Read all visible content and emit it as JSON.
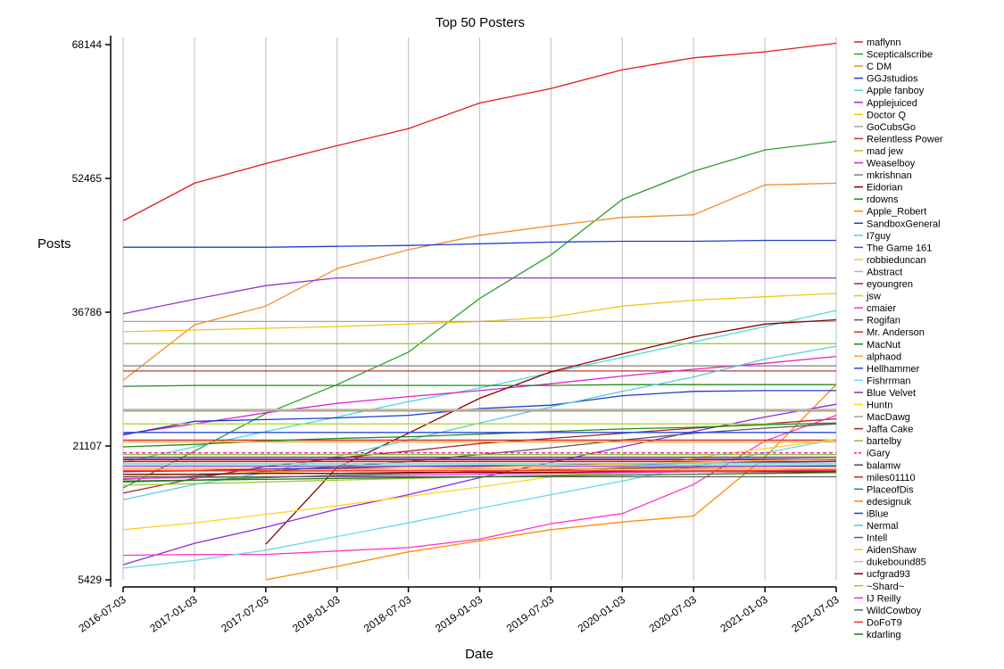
{
  "chart_data": {
    "type": "line",
    "title": "Top 50 Posters",
    "xlabel": "Date",
    "ylabel": "Posts",
    "x": [
      "2016-07-03",
      "2017-01-03",
      "2017-07-03",
      "2018-01-03",
      "2018-07-03",
      "2019-01-03",
      "2019-07-03",
      "2020-01-03",
      "2020-07-03",
      "2021-01-03",
      "2021-07-03"
    ],
    "x_tick_labels": [
      "2016-07-03",
      "2017-01-03",
      "2017-07-03",
      "2018-01-03",
      "2018-07-03",
      "2019-01-03",
      "2019-07-03",
      "2020-01-03",
      "2020-07-03",
      "2021-01-03",
      "2021-07-03"
    ],
    "y_ticks": [
      5429,
      21107,
      36786,
      52465,
      68144
    ],
    "ylim": [
      5429,
      68144
    ],
    "grid": {
      "vertical": true,
      "horizontal": false
    },
    "legend_position": "right",
    "series": [
      {
        "name": "maflynn",
        "color": "#e41a1c",
        "values": [
          47500,
          51900,
          54200,
          56300,
          58300,
          61300,
          63000,
          65200,
          66600,
          67300,
          68300
        ]
      },
      {
        "name": "Scepticalscribe",
        "color": "#2ca02c",
        "values": [
          16200,
          20500,
          24900,
          28300,
          32100,
          38400,
          43500,
          50000,
          53300,
          55800,
          56800
        ]
      },
      {
        "name": "C DM",
        "color": "#f28e2b",
        "values": [
          28800,
          35300,
          37500,
          41900,
          44100,
          45800,
          46900,
          47900,
          48200,
          51700,
          51900
        ]
      },
      {
        "name": "GGJstudios",
        "color": "#1f3fd6",
        "values": [
          44400,
          44400,
          44400,
          44500,
          44600,
          44800,
          45000,
          45100,
          45100,
          45200,
          45200
        ]
      },
      {
        "name": "Apple fanboy",
        "color": "#4dd8d8",
        "values": [
          19200,
          21000,
          22800,
          24500,
          26300,
          27900,
          29700,
          31500,
          33300,
          35100,
          37000
        ]
      },
      {
        "name": "Applejuiced",
        "color": "#9b30d9",
        "values": [
          36600,
          38300,
          39900,
          40800,
          40800,
          40800,
          40800,
          40800,
          40800,
          40800,
          40800
        ]
      },
      {
        "name": "Doctor Q",
        "color": "#f5c518",
        "values": [
          34500,
          34700,
          34900,
          35100,
          35400,
          35700,
          36200,
          37500,
          38200,
          38600,
          39000
        ]
      },
      {
        "name": "GoCubsGo",
        "color": "#a6a6a6",
        "values": [
          35700,
          35700,
          35700,
          35700,
          35700,
          35700,
          35700,
          35700,
          35700,
          35700,
          35700
        ]
      },
      {
        "name": "Relentless Power",
        "color": "#c0392b",
        "values": [
          29900,
          29900,
          29900,
          29900,
          29900,
          29900,
          29900,
          29900,
          29900,
          29900,
          29900
        ]
      },
      {
        "name": "mad jew",
        "color": "#9acd32",
        "values": [
          33100,
          33100,
          33100,
          33100,
          33100,
          33100,
          33100,
          33100,
          33100,
          33100,
          33100
        ]
      },
      {
        "name": "Weaselboy",
        "color": "#e020d0",
        "values": [
          22500,
          23700,
          25000,
          26100,
          26900,
          27600,
          28400,
          29300,
          30100,
          30800,
          31600
        ]
      },
      {
        "name": "mkrishnan",
        "color": "#7f7f7f",
        "values": [
          30500,
          30500,
          30500,
          30500,
          30500,
          30500,
          30500,
          30500,
          30500,
          30500,
          30500
        ]
      },
      {
        "name": "Eidorian",
        "color": "#8b0000",
        "values": [
          null,
          null,
          9600,
          18600,
          22600,
          26700,
          29800,
          31900,
          33900,
          35400,
          35900
        ]
      },
      {
        "name": "rdowns",
        "color": "#1e8c1e",
        "values": [
          28100,
          28200,
          28200,
          28200,
          28200,
          28200,
          28200,
          28300,
          28300,
          28300,
          28300
        ]
      },
      {
        "name": "Apple_Robert",
        "color": "#ff8c00",
        "values": [
          null,
          null,
          5429,
          7000,
          8700,
          10000,
          11300,
          12200,
          12900,
          19800,
          28300
        ]
      },
      {
        "name": "SandboxGeneral",
        "color": "#1a40c8",
        "values": [
          22400,
          24000,
          24200,
          24400,
          24700,
          25500,
          25900,
          27000,
          27500,
          27600,
          27600
        ]
      },
      {
        "name": "I7guy",
        "color": "#5cc8e0",
        "values": [
          14800,
          16600,
          18000,
          19900,
          21800,
          23800,
          25700,
          27500,
          29200,
          31300,
          32800
        ]
      },
      {
        "name": "The Game 161",
        "color": "#8a2be2",
        "values": [
          7200,
          9700,
          11600,
          13700,
          15400,
          17400,
          19200,
          21000,
          22800,
          24500,
          26000
        ]
      },
      {
        "name": "robbieduncan",
        "color": "#f0c040",
        "values": [
          25300,
          25300,
          25300,
          25300,
          25300,
          25300,
          25300,
          25300,
          25300,
          25300,
          25300
        ]
      },
      {
        "name": "Abstract",
        "color": "#b5b5b5",
        "values": [
          25400,
          25400,
          25400,
          25400,
          25400,
          25400,
          25400,
          25400,
          25400,
          25400,
          25400
        ]
      },
      {
        "name": "eyoungren",
        "color": "#a52a2a",
        "values": [
          15600,
          17300,
          18700,
          19700,
          20500,
          21400,
          22000,
          22600,
          23200,
          23700,
          24300
        ]
      },
      {
        "name": "jsw",
        "color": "#b8d430",
        "values": [
          23700,
          23700,
          23700,
          23700,
          23700,
          23700,
          23700,
          23700,
          23700,
          23700,
          23700
        ]
      },
      {
        "name": "cmaier",
        "color": "#ff33cc",
        "values": [
          8300,
          8400,
          8400,
          8800,
          9200,
          10200,
          12000,
          13200,
          16600,
          21700,
          24700
        ]
      },
      {
        "name": "Rogifan",
        "color": "#5a5a5a",
        "values": [
          17200,
          17600,
          18100,
          18700,
          19300,
          20100,
          20900,
          21800,
          22600,
          23200,
          23700
        ]
      },
      {
        "name": "Mr. Anderson",
        "color": "#d62728",
        "values": [
          21800,
          21800,
          21800,
          21800,
          21800,
          21800,
          21800,
          21800,
          21800,
          21800,
          21800
        ]
      },
      {
        "name": "MacNut",
        "color": "#228b22",
        "values": [
          21000,
          21300,
          21700,
          22000,
          22200,
          22500,
          22800,
          23100,
          23300,
          23600,
          23800
        ]
      },
      {
        "name": "alphaod",
        "color": "#ff9f1c",
        "values": [
          21600,
          21600,
          21600,
          21600,
          21600,
          21600,
          21600,
          21600,
          21600,
          21600,
          21600
        ]
      },
      {
        "name": "Hellhammer",
        "color": "#2b4ad6",
        "values": [
          22700,
          22700,
          22700,
          22700,
          22700,
          22700,
          22700,
          22700,
          22700,
          22700,
          22700
        ]
      },
      {
        "name": "Fishrrman",
        "color": "#66d9e8",
        "values": [
          6800,
          7700,
          8900,
          10500,
          12100,
          13800,
          15400,
          17000,
          18700,
          20300,
          21900
        ]
      },
      {
        "name": "Blue Velvet",
        "color": "#7b2fbe",
        "values": [
          19600,
          19600,
          19600,
          19600,
          19600,
          19600,
          19600,
          19600,
          19600,
          19600,
          19600
        ]
      },
      {
        "name": "Huntn",
        "color": "#ffd21f",
        "values": [
          11300,
          12100,
          13100,
          14100,
          15200,
          16300,
          17500,
          18600,
          19700,
          20800,
          21900
        ]
      },
      {
        "name": "MacDawg",
        "color": "#9e9e9e",
        "values": [
          25200,
          25200,
          25200,
          25200,
          25200,
          25200,
          25200,
          25200,
          25200,
          25200,
          25200
        ]
      },
      {
        "name": "Jaffa Cake",
        "color": "#b22222",
        "values": [
          19300,
          19300,
          19300,
          19300,
          19300,
          19300,
          19300,
          19300,
          19300,
          19300,
          19300
        ]
      },
      {
        "name": "bartelby",
        "color": "#8fbc3f",
        "values": [
          20100,
          20100,
          20100,
          20100,
          20100,
          20100,
          20100,
          20100,
          20100,
          20100,
          20100
        ]
      },
      {
        "name": "iGary",
        "color": "#ff1493",
        "values": [
          20300,
          20300,
          20300,
          20300,
          20300,
          20300,
          20300,
          20300,
          20300,
          20300,
          20300
        ]
      },
      {
        "name": "balamw",
        "color": "#4d4d4d",
        "values": [
          19800,
          19800,
          19800,
          19800,
          19800,
          19800,
          19800,
          19800,
          19800,
          19800,
          19800
        ]
      },
      {
        "name": "miles01110",
        "color": "#e31a1c",
        "values": [
          19500,
          19500,
          19500,
          19500,
          19500,
          19500,
          19500,
          19500,
          19500,
          19500,
          19500
        ]
      },
      {
        "name": "PlaceofDis",
        "color": "#2e8b2e",
        "values": [
          16900,
          17100,
          17400,
          17700,
          17900,
          18100,
          18300,
          18500,
          18600,
          18700,
          18800
        ]
      },
      {
        "name": "edesignuk",
        "color": "#ff7f0e",
        "values": [
          18400,
          18400,
          18400,
          18400,
          18400,
          18400,
          18400,
          18400,
          18400,
          18400,
          18400
        ]
      },
      {
        "name": "iBlue",
        "color": "#2040c0",
        "values": [
          18100,
          18200,
          18400,
          18500,
          18700,
          18800,
          18900,
          19000,
          19100,
          19200,
          19300
        ]
      },
      {
        "name": "Nermal",
        "color": "#48d1cc",
        "values": [
          18900,
          18900,
          18900,
          18900,
          18900,
          18900,
          18900,
          18900,
          18900,
          18900,
          18900
        ]
      },
      {
        "name": "Intell",
        "color": "#9932cc",
        "values": [
          18700,
          18700,
          18700,
          18700,
          18700,
          18700,
          18700,
          18700,
          18700,
          18700,
          18700
        ]
      },
      {
        "name": "AidenShaw",
        "color": "#f4c430",
        "values": [
          17600,
          17800,
          18000,
          18200,
          18400,
          18600,
          18800,
          19000,
          19200,
          19400,
          19600
        ]
      },
      {
        "name": "dukebound85",
        "color": "#bdbdbd",
        "values": [
          19100,
          19100,
          19100,
          19100,
          19100,
          19100,
          19100,
          19100,
          19100,
          19100,
          19100
        ]
      },
      {
        "name": "ucfgrad93",
        "color": "#800000",
        "values": [
          17800,
          17800,
          17900,
          17900,
          18000,
          18000,
          18000,
          18100,
          18100,
          18100,
          18100
        ]
      },
      {
        "name": "~Shard~",
        "color": "#a4c639",
        "values": [
          16500,
          16700,
          16900,
          17100,
          17300,
          17500,
          17700,
          17900,
          18100,
          18200,
          18300
        ]
      },
      {
        "name": "IJ Reilly",
        "color": "#ee30ee",
        "values": [
          17300,
          17400,
          17500,
          17600,
          17700,
          17800,
          17900,
          18000,
          18100,
          18200,
          18300
        ]
      },
      {
        "name": "WildCowboy",
        "color": "#636363",
        "values": [
          17500,
          17500,
          17500,
          17500,
          17500,
          17500,
          17500,
          17500,
          17500,
          17500,
          17500
        ]
      },
      {
        "name": "DoFoT9",
        "color": "#ff2a2a",
        "values": [
          18200,
          18200,
          18200,
          18200,
          18200,
          18200,
          18200,
          18200,
          18200,
          18200,
          18200
        ]
      },
      {
        "name": "kdarling",
        "color": "#1b7a1b",
        "values": [
          17000,
          17100,
          17200,
          17300,
          17400,
          17500,
          17600,
          17700,
          17800,
          17900,
          18000
        ]
      }
    ]
  }
}
